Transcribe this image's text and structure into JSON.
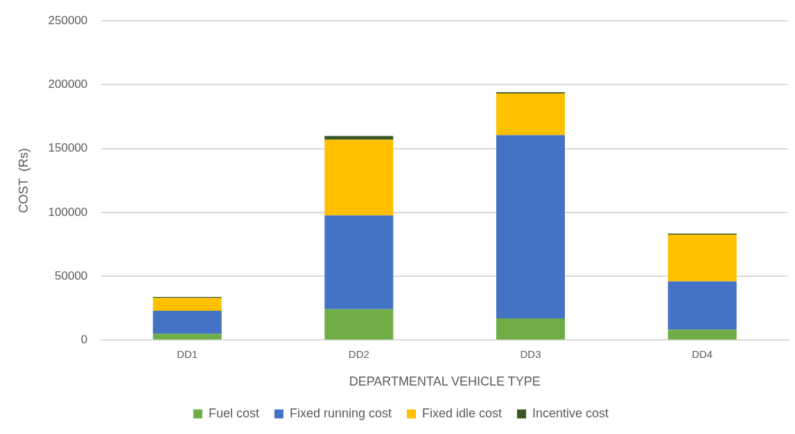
{
  "chart_data": {
    "type": "bar",
    "stacked": true,
    "xlabel": "DEPARTMENTAL VEHICLE TYPE",
    "ylabel": "COST  (Rs)",
    "categories": [
      "DD1",
      "DD2",
      "DD3",
      "DD4"
    ],
    "series": [
      {
        "name": "Fuel cost",
        "color": "#70ad47",
        "values": [
          5000,
          24200,
          17000,
          8200
        ]
      },
      {
        "name": "Fixed running cost",
        "color": "#4472c4",
        "values": [
          18000,
          73400,
          143600,
          37800
        ]
      },
      {
        "name": "Fixed idle cost",
        "color": "#ffc000",
        "values": [
          10000,
          59400,
          32600,
          36600
        ]
      },
      {
        "name": "Incentive cost",
        "color": "#375623",
        "values": [
          800,
          2800,
          1000,
          800
        ]
      }
    ],
    "ylim": [
      0,
      250000
    ],
    "yticks": [
      0,
      50000,
      100000,
      150000,
      200000,
      250000
    ],
    "grid": "y",
    "legend": "bottom"
  }
}
